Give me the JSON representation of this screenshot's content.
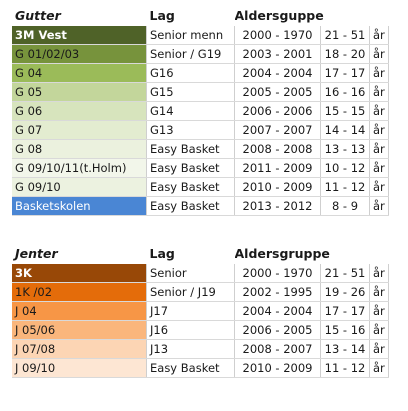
{
  "boys": {
    "header": {
      "team": "Gutter",
      "lag": "Lag",
      "age_group": "Aldersguppe"
    },
    "rows": [
      {
        "team": "3M Vest",
        "lag": "Senior menn",
        "years": "2000 - 1970",
        "ages": "21 - 51",
        "unit": "år",
        "color": "#4f6228",
        "text_color": "#ffffff",
        "bold": true
      },
      {
        "team": "G 01/02/03",
        "lag": "Senior / G19",
        "years": "2003 - 2001",
        "ages": "18 - 20",
        "unit": "år",
        "color": "#77933c",
        "text_color": "#1a1a1a",
        "bold": false
      },
      {
        "team": "G 04",
        "lag": "G16",
        "years": "2004 - 2004",
        "ages": "17 - 17",
        "unit": "år",
        "color": "#9bbb59",
        "text_color": "#1a1a1a",
        "bold": false
      },
      {
        "team": "G 05",
        "lag": "G15",
        "years": "2005 - 2005",
        "ages": "16 - 16",
        "unit": "år",
        "color": "#c3d69b",
        "text_color": "#1a1a1a",
        "bold": false
      },
      {
        "team": "G 06",
        "lag": "G14",
        "years": "2006 - 2006",
        "ages": "15 - 15",
        "unit": "år",
        "color": "#d7e4bd",
        "text_color": "#1a1a1a",
        "bold": false
      },
      {
        "team": "G 07",
        "lag": "G13",
        "years": "2007 - 2007",
        "ages": "14 - 14",
        "unit": "år",
        "color": "#e3ecd0",
        "text_color": "#1a1a1a",
        "bold": false
      },
      {
        "team": "G 08",
        "lag": "Easy Basket",
        "years": "2008 - 2008",
        "ages": "13 - 13",
        "unit": "år",
        "color": "#ebf1de",
        "text_color": "#1a1a1a",
        "bold": false
      },
      {
        "team": "G 09/10/11(t.Holm)",
        "lag": "Easy Basket",
        "years": "2011 - 2009",
        "ages": "10 - 12",
        "unit": "år",
        "color": "#f2f6ea",
        "text_color": "#1a1a1a",
        "bold": false
      },
      {
        "team": "G 09/10",
        "lag": "Easy Basket",
        "years": "2010 - 2009",
        "ages": "11 - 12",
        "unit": "år",
        "color": "#ecf2e0",
        "text_color": "#1a1a1a",
        "bold": false
      },
      {
        "team": "Basketskolen",
        "lag": "Easy Basket",
        "years": "2013 - 2012",
        "ages": "8 - 9",
        "unit": "år",
        "color": "#4a86d4",
        "text_color": "#ffffff",
        "bold": false
      }
    ]
  },
  "girls": {
    "header": {
      "team": "Jenter",
      "lag": "Lag",
      "age_group": "Aldersgruppe"
    },
    "rows": [
      {
        "team": "3K",
        "lag": "Senior",
        "years": "2000 - 1970",
        "ages": "21 - 51",
        "unit": "år",
        "color": "#984807",
        "text_color": "#ffffff",
        "bold": true
      },
      {
        "team": "1K /02",
        "lag": "Senior / J19",
        "years": "2002 - 1995",
        "ages": "19 - 26",
        "unit": "år",
        "color": "#e46c0a",
        "text_color": "#1a1a1a",
        "bold": false
      },
      {
        "team": "J 04",
        "lag": "J17",
        "years": "2004 - 2004",
        "ages": "17 - 17",
        "unit": "år",
        "color": "#f79646",
        "text_color": "#1a1a1a",
        "bold": false
      },
      {
        "team": "J 05/06",
        "lag": "J16",
        "years": "2006 - 2005",
        "ages": "15 - 16",
        "unit": "år",
        "color": "#fab67c",
        "text_color": "#1a1a1a",
        "bold": false
      },
      {
        "team": "J 07/08",
        "lag": "J13",
        "years": "2008 - 2007",
        "ages": "13 - 14",
        "unit": "år",
        "color": "#fcd5b4",
        "text_color": "#1a1a1a",
        "bold": false
      },
      {
        "team": "J 09/10",
        "lag": "Easy Basket",
        "years": "2010 - 2009",
        "ages": "11 - 12",
        "unit": "år",
        "color": "#fde6d3",
        "text_color": "#1a1a1a",
        "bold": false
      }
    ]
  }
}
